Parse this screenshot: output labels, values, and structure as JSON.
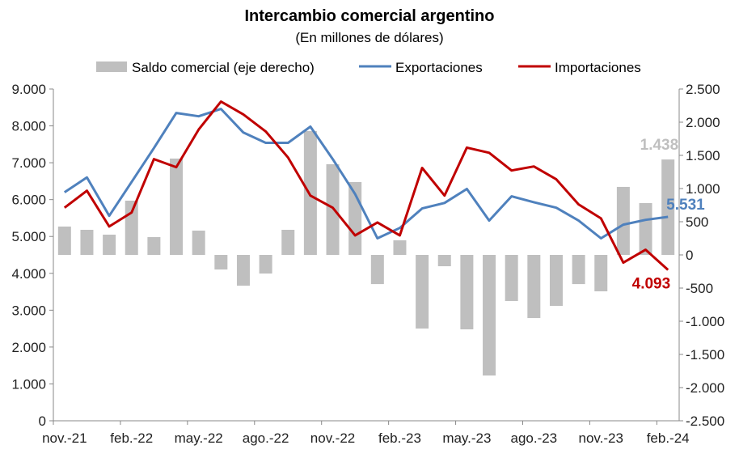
{
  "chart_data": {
    "type": "bar+line",
    "title": "Intercambio comercial argentino",
    "subtitle": "(En millones de dólares)",
    "legend_position": "top",
    "categories": [
      "nov.-21",
      "dic.-21",
      "ene.-22",
      "feb.-22",
      "mar.-22",
      "abr.-22",
      "may.-22",
      "jun.-22",
      "jul.-22",
      "ago.-22",
      "sep.-22",
      "oct.-22",
      "nov.-22",
      "dic.-22",
      "ene.-23",
      "feb.-23",
      "mar.-23",
      "abr.-23",
      "may.-23",
      "jun.-23",
      "jul.-23",
      "ago.-23",
      "sep.-23",
      "oct.-23",
      "nov.-23",
      "dic.-23",
      "ene.-24",
      "feb.-24"
    ],
    "x_tick_labels": [
      "nov.-21",
      "feb.-22",
      "may.-22",
      "ago.-22",
      "nov.-22",
      "feb.-23",
      "may.-23",
      "ago.-23",
      "nov.-23",
      "feb.-24"
    ],
    "left_axis": {
      "min": 0,
      "max": 9000,
      "ticks": [
        "0",
        "1.000",
        "2.000",
        "3.000",
        "4.000",
        "5.000",
        "6.000",
        "7.000",
        "8.000",
        "9.000"
      ]
    },
    "right_axis": {
      "min": -2500,
      "max": 2500,
      "ticks": [
        "-2.500",
        "-2.000",
        "-1.500",
        "-1.000",
        "-500",
        "0",
        "500",
        "1.000",
        "1.500",
        "2.000",
        "2.500"
      ]
    },
    "series": [
      {
        "name": "Saldo comercial (eje derecho)",
        "type": "bar",
        "axis": "right",
        "color": "#bfbfbf",
        "values": [
          427,
          378,
          305,
          817,
          268,
          1452,
          366,
          -220,
          -464,
          -281,
          378,
          1867,
          1367,
          1098,
          -440,
          220,
          -1110,
          -171,
          -1122,
          -1818,
          -695,
          -952,
          -768,
          -440,
          -549,
          1025,
          781,
          1438
        ]
      },
      {
        "name": "Exportaciones",
        "type": "line",
        "axis": "left",
        "color": "#4f81bd",
        "values": [
          6200,
          6600,
          5560,
          6480,
          7400,
          8350,
          8260,
          8460,
          7820,
          7540,
          7540,
          7980,
          7100,
          6150,
          4950,
          5230,
          5760,
          5910,
          6290,
          5430,
          6090,
          5930,
          5780,
          5430,
          4950,
          5320,
          5450,
          5531
        ]
      },
      {
        "name": "Importaciones",
        "type": "line",
        "axis": "left",
        "color": "#c00000",
        "values": [
          5780,
          6240,
          5270,
          5650,
          7100,
          6880,
          7900,
          8660,
          8310,
          7850,
          7140,
          6110,
          5780,
          5030,
          5380,
          5030,
          6860,
          6110,
          7410,
          7270,
          6790,
          6900,
          6550,
          5870,
          5490,
          4290,
          4640,
          4093
        ]
      }
    ],
    "annotations": [
      {
        "series": "Saldo comercial (eje derecho)",
        "category": "feb.-24",
        "text": "1.438",
        "color": "#bfbfbf"
      },
      {
        "series": "Exportaciones",
        "category": "feb.-24",
        "text": "5.531",
        "color": "#4f81bd"
      },
      {
        "series": "Importaciones",
        "category": "feb.-24",
        "text": "4.093",
        "color": "#c00000"
      }
    ]
  }
}
